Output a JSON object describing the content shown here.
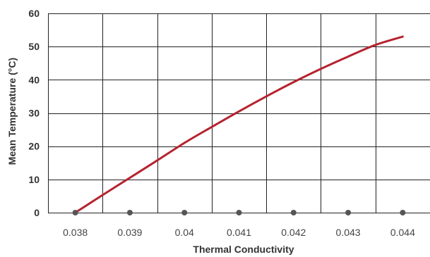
{
  "chart_data": {
    "type": "line",
    "title": "",
    "xlabel": "Thermal Conductivity",
    "ylabel": "Mean Temperature (°C)",
    "x_tick_labels": [
      "0.038",
      "0.039",
      "0.04",
      "0.041",
      "0.042",
      "0.043",
      "0.044"
    ],
    "y_tick_labels": [
      "0",
      "10",
      "20",
      "30",
      "40",
      "50",
      "60"
    ],
    "xlim": [
      0.0375,
      0.0445
    ],
    "ylim": [
      0,
      60
    ],
    "grid": true,
    "legend": "none",
    "marker_points": {
      "x": [
        0.038,
        0.039,
        0.04,
        0.041,
        0.042,
        0.043,
        0.044
      ],
      "y": [
        0,
        0,
        0,
        0,
        0,
        0,
        0
      ]
    },
    "series": [
      {
        "color": "#b5232f",
        "x": [
          0.038,
          0.0385,
          0.039,
          0.0395,
          0.04,
          0.0405,
          0.041,
          0.0415,
          0.042,
          0.0425,
          0.043,
          0.0435,
          0.044
        ],
        "y": [
          0,
          5.3,
          10.5,
          15.7,
          21,
          25.8,
          30.5,
          35,
          39.3,
          43.3,
          47,
          50.5,
          53
        ]
      }
    ],
    "colors": {
      "line": "#b5232f",
      "marker": "#555555",
      "grid": "#222222",
      "tick_text": "#444444",
      "label_text": "#333333"
    }
  }
}
